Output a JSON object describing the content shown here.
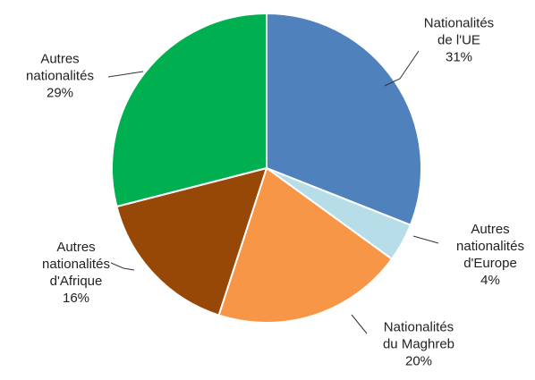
{
  "chart_data": {
    "type": "pie",
    "categories": [
      "Nationalités\nde l'UE",
      "Autres\nnationalités\nd'Europe",
      "Nationalités\ndu Maghreb",
      "Autres\nnationalités\nd'Afrique",
      "Autres\nnationalités"
    ],
    "values": [
      31,
      4,
      20,
      16,
      29
    ],
    "value_labels": [
      "31%",
      "4%",
      "20%",
      "16%",
      "29%"
    ],
    "colors": [
      "#4f81bd",
      "#b7dee8",
      "#f79646",
      "#974706",
      "#00b050"
    ]
  }
}
